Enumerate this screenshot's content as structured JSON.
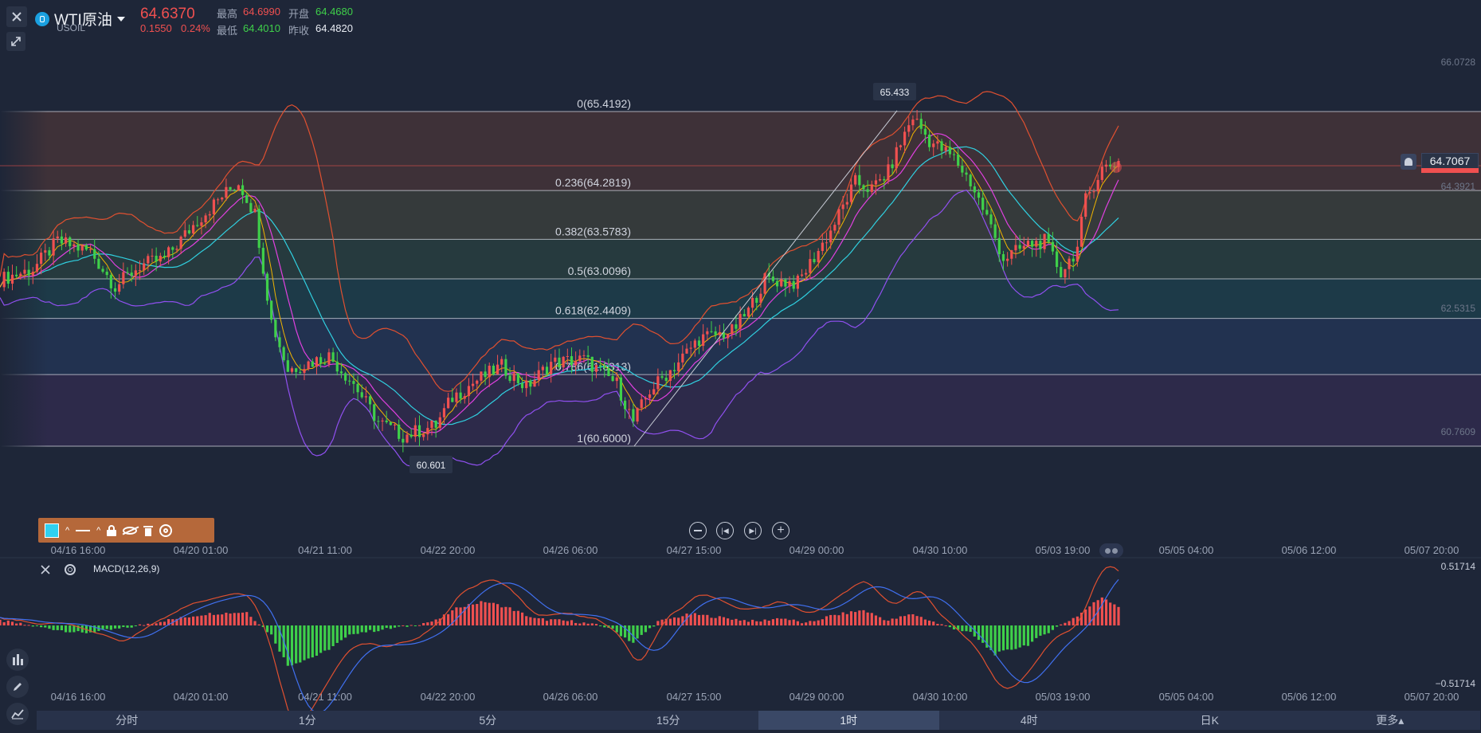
{
  "header": {
    "symbol_name": "WTI原油",
    "symbol_code": "USOIL",
    "last_price": "64.6370",
    "change": "0.1550",
    "change_pct": "0.24%",
    "high_label": "最高",
    "high": "64.6990",
    "open_label": "开盘",
    "open": "64.4680",
    "low_label": "最低",
    "low": "64.4010",
    "prev_close_label": "昨收",
    "prev_close": "64.4820"
  },
  "colors": {
    "background": "#1e2638",
    "up": "#f05050",
    "down": "#3fd04a",
    "ma_fast": "#f0b400",
    "ma_mid": "#e040e0",
    "ma_slow": "#30d0e0",
    "boll_upper": "#e05030",
    "boll_lower": "#9050f0",
    "macd_dif": "#e05030",
    "macd_dea": "#4070f0",
    "toolbar": "#b5683a"
  },
  "price_axis": [
    "66.0728",
    "64.3921",
    "62.5315",
    "60.7609"
  ],
  "current_price_tag": "64.7067",
  "time_axis": [
    "04/16 16:00",
    "04/20 01:00",
    "04/21 11:00",
    "04/22 20:00",
    "04/26 06:00",
    "04/27 15:00",
    "04/29 00:00",
    "04/30 10:00",
    "05/03 19:00",
    "05/05 04:00",
    "05/06 12:00",
    "05/07 20:00"
  ],
  "macd": {
    "label": "MACD(12,26,9)",
    "axis_top": "0.51714",
    "axis_bottom": "−0.51714"
  },
  "timeframes": [
    "分时",
    "1分",
    "5分",
    "15分",
    "1时",
    "4时",
    "日K",
    "更多▴"
  ],
  "active_timeframe": "1时",
  "chart_data": {
    "type": "candlestick",
    "title": "WTI原油",
    "ylim": [
      59.6,
      66.35
    ],
    "fibonacci": [
      {
        "label": "0(65.4192)",
        "level": 0,
        "price": 65.4192
      },
      {
        "label": "0.236(64.2819)",
        "level": 0.236,
        "price": 64.2819
      },
      {
        "label": "0.382(63.5783)",
        "level": 0.382,
        "price": 63.5783
      },
      {
        "label": "0.5(63.0096)",
        "level": 0.5,
        "price": 63.0096
      },
      {
        "label": "0.618(62.4409)",
        "level": 0.618,
        "price": 62.4409
      },
      {
        "label": "0.786(61.6313)",
        "level": 0.786,
        "price": 61.6313
      },
      {
        "label": "1(60.6000)",
        "level": 1,
        "price": 60.6
      }
    ],
    "annotations": [
      {
        "text": "65.433",
        "price": 65.433
      },
      {
        "text": "60.601",
        "price": 60.601
      }
    ],
    "close_path": [
      [
        0,
        63.0
      ],
      [
        8,
        63.15
      ],
      [
        14,
        63.55
      ],
      [
        22,
        63.4
      ],
      [
        28,
        62.9
      ],
      [
        34,
        63.2
      ],
      [
        40,
        63.3
      ],
      [
        48,
        63.85
      ],
      [
        54,
        64.2
      ],
      [
        58,
        64.4
      ],
      [
        62,
        63.95
      ],
      [
        66,
        62.4
      ],
      [
        70,
        61.7
      ],
      [
        80,
        61.9
      ],
      [
        86,
        61.5
      ],
      [
        92,
        60.95
      ],
      [
        98,
        60.75
      ],
      [
        106,
        60.9
      ],
      [
        110,
        61.3
      ],
      [
        116,
        61.55
      ],
      [
        122,
        61.75
      ],
      [
        128,
        61.45
      ],
      [
        134,
        61.8
      ],
      [
        142,
        61.85
      ],
      [
        150,
        61.5
      ],
      [
        154,
        60.95
      ],
      [
        158,
        61.4
      ],
      [
        164,
        61.75
      ],
      [
        170,
        62.15
      ],
      [
        178,
        62.25
      ],
      [
        182,
        62.55
      ],
      [
        186,
        63.0
      ],
      [
        194,
        62.95
      ],
      [
        202,
        63.7
      ],
      [
        208,
        64.4
      ],
      [
        212,
        64.3
      ],
      [
        216,
        64.55
      ],
      [
        220,
        65.1
      ],
      [
        222,
        65.35
      ],
      [
        226,
        65.0
      ],
      [
        232,
        64.75
      ],
      [
        236,
        64.4
      ],
      [
        240,
        63.9
      ],
      [
        244,
        63.3
      ],
      [
        250,
        63.5
      ],
      [
        254,
        63.55
      ],
      [
        258,
        63.1
      ],
      [
        262,
        63.45
      ],
      [
        264,
        64.15
      ],
      [
        268,
        64.6
      ],
      [
        272,
        64.7
      ]
    ],
    "macd_path": [
      [
        0,
        0.05
      ],
      [
        10,
        -0.02
      ],
      [
        20,
        -0.08
      ],
      [
        30,
        -0.03
      ],
      [
        40,
        0.05
      ],
      [
        50,
        0.12
      ],
      [
        60,
        0.14
      ],
      [
        66,
        -0.1
      ],
      [
        70,
        -0.42
      ],
      [
        78,
        -0.3
      ],
      [
        86,
        -0.08
      ],
      [
        92,
        -0.05
      ],
      [
        100,
        0.0
      ],
      [
        106,
        0.05
      ],
      [
        112,
        0.2
      ],
      [
        118,
        0.25
      ],
      [
        124,
        0.18
      ],
      [
        130,
        0.07
      ],
      [
        140,
        0.04
      ],
      [
        148,
        -0.02
      ],
      [
        154,
        -0.18
      ],
      [
        160,
        0.04
      ],
      [
        168,
        0.12
      ],
      [
        176,
        0.08
      ],
      [
        184,
        0.04
      ],
      [
        190,
        0.08
      ],
      [
        196,
        0.02
      ],
      [
        202,
        0.1
      ],
      [
        210,
        0.16
      ],
      [
        216,
        0.05
      ],
      [
        222,
        0.12
      ],
      [
        228,
        0.02
      ],
      [
        236,
        -0.08
      ],
      [
        242,
        -0.3
      ],
      [
        250,
        -0.2
      ],
      [
        256,
        -0.04
      ],
      [
        262,
        0.1
      ],
      [
        268,
        0.3
      ],
      [
        272,
        0.2
      ]
    ]
  }
}
